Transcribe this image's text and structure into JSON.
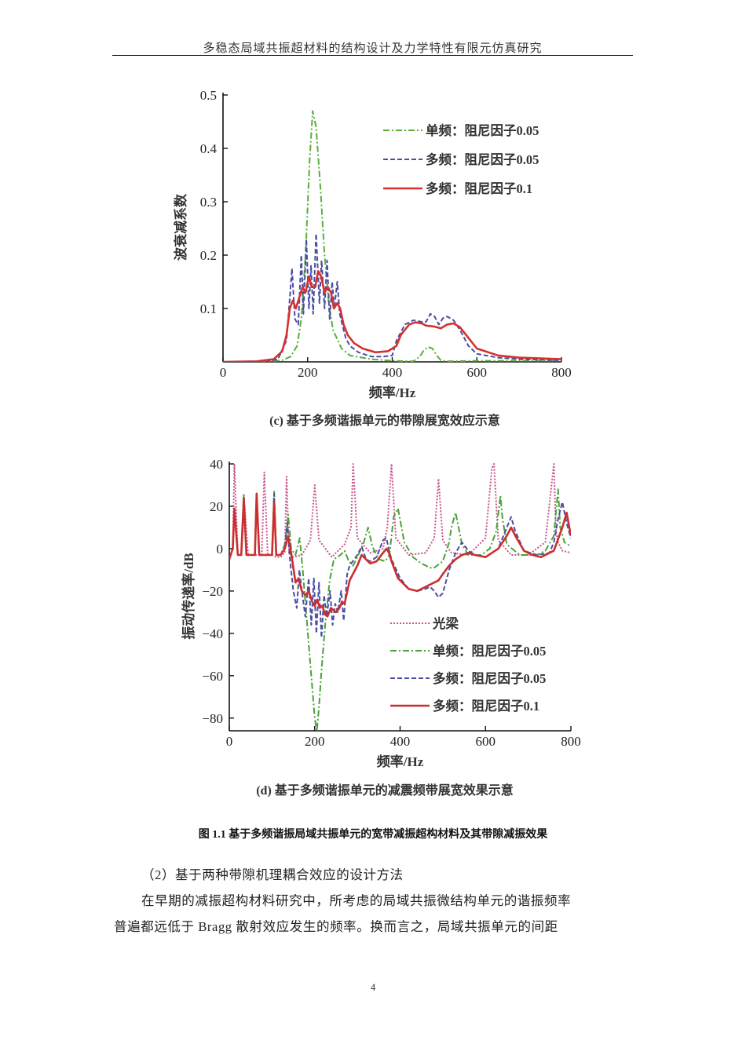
{
  "header": {
    "running_title": "多稳态局域共振超材料的结构设计及力学特性有限元仿真研究"
  },
  "figure": {
    "title": "图 1.1 基于多频谐振局域共振单元的宽带减振超构材料及其带隙减振效果",
    "panel_c": {
      "caption": "(c) 基于多频谐振单元的带隙展宽效应示意"
    },
    "panel_d": {
      "caption": "(d) 基于多频谐振单元的减震频带展宽效果示意"
    }
  },
  "body": {
    "section_heading": "（2）基于两种带隙机理耦合效应的设计方法",
    "para_line1": "在早期的减振超构材料研究中，所考虑的局域共振微结构单元的谐振频率",
    "para_line2": "普遍都远低于 Bragg 散射效应发生的频率。换而言之，局域共振单元的间距"
  },
  "page": {
    "number": "4"
  },
  "chart_data": [
    {
      "type": "line",
      "title": "(c) 基于多频谐振单元的带隙展宽效应示意",
      "xlabel": "频率/Hz",
      "ylabel": "波衰减系数",
      "xlim": [
        0,
        800
      ],
      "ylim": [
        0,
        0.5
      ],
      "xticks": [
        0,
        200,
        400,
        600,
        800
      ],
      "yticks": [
        0.1,
        0.2,
        0.3,
        0.4,
        0.5
      ],
      "grid": false,
      "legend_position": "upper right",
      "series": [
        {
          "name": "单频：阻尼因子0.05",
          "color": "#5aae3a",
          "dash": "8,3,2,3",
          "x": [
            0,
            100,
            140,
            160,
            175,
            185,
            195,
            205,
            212,
            220,
            230,
            240,
            250,
            260,
            280,
            300,
            350,
            400,
            450,
            465,
            475,
            485,
            495,
            505,
            515,
            530,
            600,
            700,
            800
          ],
          "y": [
            0,
            0,
            0.003,
            0.01,
            0.03,
            0.08,
            0.2,
            0.38,
            0.47,
            0.44,
            0.33,
            0.2,
            0.11,
            0.06,
            0.025,
            0.012,
            0.005,
            0.002,
            0.001,
            0.01,
            0.022,
            0.028,
            0.025,
            0.012,
            0.003,
            0.001,
            0.002,
            0.002,
            0.002
          ]
        },
        {
          "name": "多频：阻尼因子0.05",
          "color": "#4a4ea0",
          "dash": "6,3",
          "x": [
            0,
            100,
            130,
            150,
            158,
            163,
            170,
            178,
            185,
            190,
            197,
            203,
            208,
            213,
            220,
            228,
            233,
            240,
            246,
            252,
            258,
            263,
            270,
            276,
            282,
            290,
            300,
            320,
            350,
            380,
            400,
            410,
            430,
            450,
            470,
            480,
            490,
            500,
            510,
            520,
            530,
            545,
            560,
            580,
            600,
            650,
            700,
            800
          ],
          "y": [
            0,
            0,
            0.005,
            0.04,
            0.12,
            0.175,
            0.08,
            0.07,
            0.2,
            0.09,
            0.23,
            0.1,
            0.18,
            0.09,
            0.24,
            0.11,
            0.19,
            0.1,
            0.19,
            0.08,
            0.15,
            0.1,
            0.15,
            0.09,
            0.07,
            0.045,
            0.03,
            0.018,
            0.01,
            0.01,
            0.012,
            0.04,
            0.07,
            0.078,
            0.075,
            0.075,
            0.09,
            0.085,
            0.07,
            0.082,
            0.085,
            0.078,
            0.06,
            0.03,
            0.015,
            0.008,
            0.005,
            0.003
          ]
        },
        {
          "name": "多频：阻尼因子0.1",
          "color": "#d63030",
          "dash": "",
          "x": [
            0,
            80,
            120,
            140,
            150,
            158,
            165,
            172,
            180,
            188,
            195,
            203,
            210,
            218,
            225,
            232,
            240,
            248,
            255,
            262,
            270,
            277,
            285,
            295,
            310,
            330,
            360,
            390,
            410,
            420,
            440,
            455,
            470,
            480,
            500,
            515,
            530,
            545,
            560,
            580,
            600,
            650,
            700,
            800
          ],
          "y": [
            0,
            0.001,
            0.005,
            0.02,
            0.05,
            0.1,
            0.115,
            0.1,
            0.12,
            0.14,
            0.13,
            0.16,
            0.14,
            0.14,
            0.17,
            0.16,
            0.13,
            0.14,
            0.13,
            0.1,
            0.11,
            0.1,
            0.07,
            0.05,
            0.035,
            0.025,
            0.018,
            0.02,
            0.03,
            0.05,
            0.07,
            0.074,
            0.072,
            0.068,
            0.066,
            0.063,
            0.07,
            0.072,
            0.065,
            0.045,
            0.025,
            0.012,
            0.008,
            0.005
          ]
        }
      ]
    },
    {
      "type": "line",
      "title": "(d) 基于多频谐振单元的减震频带展宽效果示意",
      "xlabel": "频率/Hz",
      "ylabel": "振动传递率/dB",
      "xlim": [
        0,
        800
      ],
      "ylim": [
        -86,
        40
      ],
      "xticks": [
        0,
        200,
        400,
        600,
        800
      ],
      "yticks": [
        -80,
        -60,
        -40,
        -20,
        0,
        20,
        40
      ],
      "grid": false,
      "legend_position": "lower right",
      "series": [
        {
          "name": "光梁",
          "color": "#c8548c",
          "dash": "2,2",
          "x": [
            0,
            8,
            12,
            20,
            28,
            36,
            44,
            52,
            60,
            68,
            76,
            82,
            90,
            100,
            110,
            120,
            130,
            134,
            140,
            150,
            170,
            190,
            200,
            210,
            240,
            270,
            285,
            290,
            300,
            330,
            360,
            370,
            380,
            390,
            420,
            460,
            480,
            490,
            500,
            520,
            560,
            600,
            615,
            620,
            630,
            660,
            700,
            740,
            760,
            765,
            770,
            780,
            800
          ],
          "y": [
            -5,
            0,
            40,
            -3,
            -3,
            20,
            -3,
            -3,
            -3,
            -3,
            -3,
            36,
            -3,
            -3,
            -4,
            -4,
            -2,
            34,
            -2,
            -4,
            -3,
            4,
            30,
            4,
            -4,
            2,
            10,
            40,
            5,
            -2,
            0,
            10,
            40,
            5,
            -3,
            -2,
            5,
            33,
            4,
            -2,
            -3,
            5,
            38,
            40,
            4,
            -3,
            -3,
            3,
            40,
            8,
            3,
            -1,
            -2
          ]
        },
        {
          "name": "单频：阻尼因子0.05",
          "color": "#4aa23a",
          "dash": "8,3,2,3",
          "x": [
            0,
            8,
            12,
            20,
            28,
            34,
            40,
            46,
            52,
            60,
            64,
            70,
            76,
            90,
            100,
            105,
            110,
            120,
            130,
            138,
            145,
            155,
            165,
            172,
            180,
            190,
            200,
            205,
            210,
            215,
            225,
            235,
            245,
            260,
            270,
            280,
            290,
            300,
            315,
            325,
            335,
            350,
            365,
            375,
            385,
            395,
            410,
            430,
            450,
            470,
            480,
            500,
            515,
            520,
            530,
            545,
            560,
            590,
            610,
            625,
            635,
            640,
            650,
            680,
            700,
            720,
            740,
            760,
            770,
            775,
            785,
            800
          ],
          "y": [
            -5,
            0,
            18,
            -3,
            -3,
            26,
            -3,
            -3,
            -3,
            -3,
            26,
            -3,
            -3,
            -3,
            -3,
            27,
            -3,
            -3,
            2,
            16,
            0,
            -3,
            5,
            -10,
            -30,
            -55,
            -80,
            -86,
            -75,
            -60,
            -35,
            -15,
            -5,
            -3,
            -1,
            -6,
            -8,
            -4,
            3,
            10,
            1,
            -5,
            -6,
            -3,
            15,
            19,
            3,
            -4,
            -7,
            -9,
            -9,
            -6,
            3,
            10,
            17,
            2,
            -3,
            -3,
            0,
            8,
            25,
            14,
            2,
            -3,
            -3,
            -3,
            -1,
            6,
            28,
            10,
            3,
            1
          ]
        },
        {
          "name": "多频：阻尼因子0.05",
          "color": "#4a4ea0",
          "dash": "6,3",
          "x": [
            0,
            8,
            12,
            20,
            28,
            34,
            40,
            46,
            52,
            60,
            64,
            70,
            76,
            90,
            100,
            105,
            110,
            120,
            130,
            136,
            142,
            150,
            158,
            164,
            170,
            178,
            186,
            192,
            198,
            204,
            210,
            216,
            222,
            228,
            236,
            242,
            248,
            254,
            262,
            268,
            276,
            282,
            300,
            310,
            320,
            330,
            345,
            360,
            368,
            374,
            380,
            400,
            420,
            440,
            460,
            470,
            480,
            490,
            500,
            515,
            530,
            545,
            560,
            575,
            600,
            630,
            650,
            660,
            670,
            690,
            720,
            750,
            760,
            770,
            780,
            790,
            800
          ],
          "y": [
            -5,
            0,
            18,
            -3,
            -3,
            22,
            -3,
            -3,
            -3,
            -3,
            25,
            -3,
            -3,
            -3,
            -3,
            26,
            -3,
            -3,
            0,
            12,
            -5,
            -20,
            -28,
            -10,
            -20,
            -32,
            -14,
            -36,
            -14,
            -40,
            -16,
            -42,
            -22,
            -32,
            -20,
            -36,
            -26,
            -30,
            -20,
            -34,
            -12,
            -8,
            -3,
            1,
            -5,
            -6,
            -4,
            4,
            5,
            -1,
            -5,
            -14,
            -19,
            -20,
            -19,
            -18,
            -20,
            -23,
            -21,
            -10,
            -2,
            3,
            -1,
            -3,
            -4,
            0,
            10,
            15,
            8,
            -1,
            -3,
            -2,
            3,
            14,
            22,
            12,
            5
          ]
        },
        {
          "name": "多频：阻尼因子0.1",
          "color": "#cc2e2e",
          "dash": "",
          "x": [
            0,
            8,
            12,
            20,
            28,
            34,
            40,
            46,
            52,
            60,
            64,
            70,
            76,
            90,
            100,
            105,
            110,
            120,
            130,
            138,
            145,
            155,
            162,
            170,
            178,
            186,
            194,
            200,
            206,
            212,
            218,
            224,
            230,
            238,
            244,
            250,
            258,
            264,
            270,
            282,
            300,
            310,
            320,
            330,
            345,
            360,
            368,
            374,
            380,
            395,
            420,
            440,
            460,
            480,
            490,
            500,
            515,
            530,
            545,
            560,
            575,
            600,
            630,
            650,
            660,
            670,
            690,
            710,
            730,
            760,
            780,
            790,
            800
          ],
          "y": [
            -5,
            0,
            19,
            -3,
            -3,
            24,
            -3,
            -3,
            -3,
            -3,
            26,
            -3,
            -3,
            -3,
            -3,
            22,
            -3,
            -3,
            0,
            6,
            -2,
            -16,
            -14,
            -20,
            -22,
            -20,
            -25,
            -27,
            -24,
            -28,
            -27,
            -31,
            -32,
            -28,
            -29,
            -30,
            -28,
            -25,
            -26,
            -15,
            -8,
            -3,
            -5,
            -7,
            -6,
            -2,
            0,
            -2,
            -6,
            -14,
            -19,
            -20,
            -18,
            -16,
            -15,
            -12,
            -8,
            -5,
            -3,
            -2,
            -3,
            -4,
            0,
            6,
            10,
            6,
            -1,
            -3,
            -4,
            -1,
            10,
            17,
            6
          ]
        }
      ]
    }
  ]
}
